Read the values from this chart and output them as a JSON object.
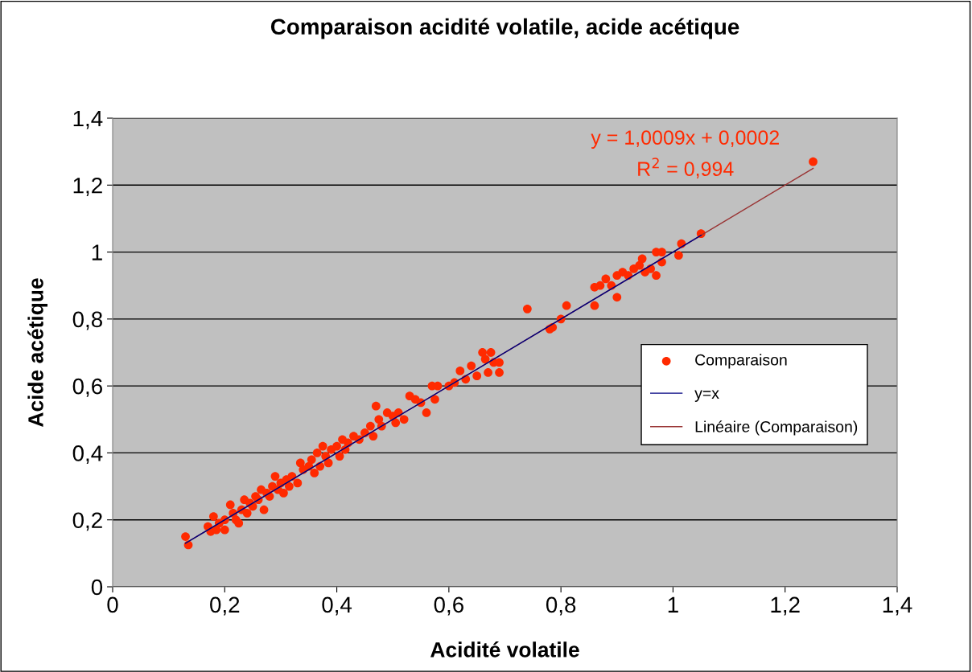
{
  "chart_data": {
    "type": "scatter",
    "title": "Comparaison acidité volatile, acide acétique",
    "xlabel": "Acidité volatile",
    "ylabel": "Acide acétique",
    "xlim": [
      0,
      1.4
    ],
    "ylim": [
      0,
      1.4
    ],
    "xticks": [
      0,
      {
        "value": 0.2,
        "label": "0,2"
      },
      {
        "value": 0.4,
        "label": "0,4"
      },
      {
        "value": 0.6,
        "label": "0,6"
      },
      {
        "value": 0.8,
        "label": "0,8"
      },
      1,
      {
        "value": 1.2,
        "label": "1,2"
      },
      {
        "value": 1.4,
        "label": "1,4"
      }
    ],
    "yticks": [
      0,
      {
        "value": 0.2,
        "label": "0,2"
      },
      {
        "value": 0.4,
        "label": "0,4"
      },
      {
        "value": 0.6,
        "label": "0,6"
      },
      {
        "value": 0.8,
        "label": "0,8"
      },
      1,
      {
        "value": 1.2,
        "label": "1,2"
      },
      {
        "value": 1.4,
        "label": "1,4"
      }
    ],
    "grid": "y",
    "legend": "right",
    "annotations": [
      "y = 1,0009x + 0,0002",
      "R$^{2}$ = 0,994"
    ],
    "series": [
      {
        "name": "Comparaison",
        "marker": "circle",
        "color": "#ff2a00",
        "x": [
          0.13,
          0.135,
          0.17,
          0.175,
          0.18,
          0.185,
          0.19,
          0.2,
          0.2,
          0.21,
          0.215,
          0.22,
          0.225,
          0.23,
          0.235,
          0.24,
          0.245,
          0.25,
          0.255,
          0.26,
          0.265,
          0.27,
          0.275,
          0.28,
          0.285,
          0.29,
          0.295,
          0.3,
          0.305,
          0.31,
          0.315,
          0.32,
          0.33,
          0.335,
          0.34,
          0.35,
          0.355,
          0.36,
          0.365,
          0.37,
          0.375,
          0.38,
          0.385,
          0.39,
          0.4,
          0.405,
          0.41,
          0.415,
          0.42,
          0.43,
          0.44,
          0.45,
          0.46,
          0.465,
          0.47,
          0.475,
          0.48,
          0.49,
          0.5,
          0.505,
          0.51,
          0.52,
          0.53,
          0.54,
          0.55,
          0.56,
          0.57,
          0.575,
          0.58,
          0.6,
          0.61,
          0.62,
          0.63,
          0.64,
          0.65,
          0.66,
          0.665,
          0.67,
          0.675,
          0.68,
          0.69,
          0.69,
          0.74,
          0.78,
          0.785,
          0.8,
          0.81,
          0.86,
          0.86,
          0.87,
          0.88,
          0.89,
          0.9,
          0.9,
          0.91,
          0.92,
          0.93,
          0.94,
          0.945,
          0.95,
          0.96,
          0.97,
          0.97,
          0.98,
          0.98,
          1.01,
          1.015,
          1.05,
          1.25
        ],
        "values": [
          0.15,
          0.125,
          0.18,
          0.165,
          0.21,
          0.17,
          0.19,
          0.17,
          0.2,
          0.245,
          0.22,
          0.2,
          0.19,
          0.23,
          0.26,
          0.22,
          0.25,
          0.24,
          0.27,
          0.26,
          0.29,
          0.23,
          0.28,
          0.27,
          0.3,
          0.33,
          0.29,
          0.31,
          0.28,
          0.32,
          0.3,
          0.33,
          0.31,
          0.37,
          0.35,
          0.36,
          0.38,
          0.34,
          0.4,
          0.36,
          0.42,
          0.39,
          0.37,
          0.41,
          0.42,
          0.39,
          0.44,
          0.41,
          0.43,
          0.45,
          0.44,
          0.46,
          0.48,
          0.45,
          0.54,
          0.5,
          0.48,
          0.52,
          0.51,
          0.49,
          0.52,
          0.5,
          0.57,
          0.56,
          0.55,
          0.52,
          0.6,
          0.56,
          0.6,
          0.6,
          0.61,
          0.645,
          0.62,
          0.66,
          0.63,
          0.7,
          0.68,
          0.64,
          0.7,
          0.67,
          0.64,
          0.67,
          0.83,
          0.77,
          0.775,
          0.8,
          0.84,
          0.84,
          0.895,
          0.9,
          0.92,
          0.9,
          0.865,
          0.93,
          0.94,
          0.93,
          0.95,
          0.96,
          0.98,
          0.94,
          0.95,
          0.93,
          1.0,
          0.97,
          1.0,
          0.99,
          1.025,
          1.055,
          1.27
        ]
      },
      {
        "name": "y=x",
        "type": "line",
        "color": "#000080",
        "x": [
          0.13,
          1.05
        ],
        "values": [
          0.13,
          1.05
        ]
      },
      {
        "name": "Linéaire (Comparaison)",
        "type": "line",
        "color": "#993333",
        "x": [
          0.13,
          1.25
        ],
        "values": [
          0.13,
          1.25
        ]
      }
    ]
  }
}
